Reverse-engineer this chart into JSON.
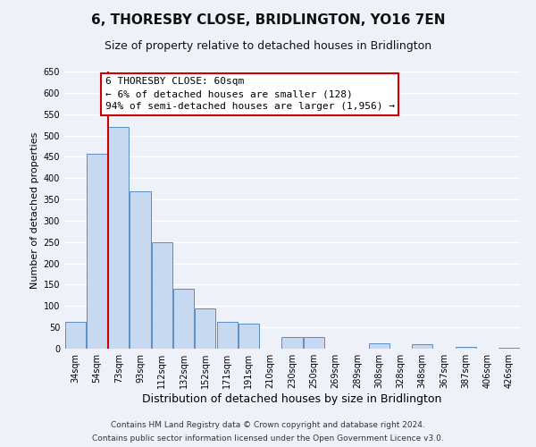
{
  "title": "6, THORESBY CLOSE, BRIDLINGTON, YO16 7EN",
  "subtitle": "Size of property relative to detached houses in Bridlington",
  "xlabel": "Distribution of detached houses by size in Bridlington",
  "ylabel": "Number of detached properties",
  "bar_labels": [
    "34sqm",
    "54sqm",
    "73sqm",
    "93sqm",
    "112sqm",
    "132sqm",
    "152sqm",
    "171sqm",
    "191sqm",
    "210sqm",
    "230sqm",
    "250sqm",
    "269sqm",
    "289sqm",
    "308sqm",
    "328sqm",
    "348sqm",
    "367sqm",
    "387sqm",
    "406sqm",
    "426sqm"
  ],
  "bar_heights": [
    63,
    458,
    520,
    370,
    250,
    140,
    95,
    62,
    58,
    0,
    28,
    28,
    0,
    0,
    13,
    0,
    10,
    0,
    5,
    0,
    3
  ],
  "bar_color": "#c6d9f0",
  "bar_edge_color": "#5a8fc3",
  "ylim": [
    0,
    650
  ],
  "yticks": [
    0,
    50,
    100,
    150,
    200,
    250,
    300,
    350,
    400,
    450,
    500,
    550,
    600,
    650
  ],
  "property_line_x": 1.5,
  "property_line_color": "#cc0000",
  "annotation_title": "6 THORESBY CLOSE: 60sqm",
  "annotation_line1": "← 6% of detached houses are smaller (128)",
  "annotation_line2": "94% of semi-detached houses are larger (1,956) →",
  "annotation_box_facecolor": "#ffffff",
  "annotation_box_edgecolor": "#cc0000",
  "footer1": "Contains HM Land Registry data © Crown copyright and database right 2024.",
  "footer2": "Contains public sector information licensed under the Open Government Licence v3.0.",
  "bg_color": "#eef2f8",
  "plot_bg_color": "#eef2f8",
  "grid_color": "#ffffff",
  "title_fontsize": 11,
  "subtitle_fontsize": 9,
  "xlabel_fontsize": 9,
  "ylabel_fontsize": 8,
  "tick_fontsize": 7,
  "footer_fontsize": 6.5,
  "annotation_fontsize": 8
}
